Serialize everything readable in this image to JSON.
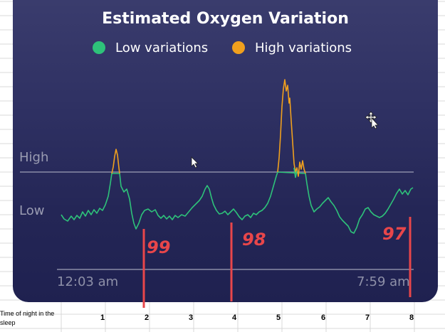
{
  "chart_data": {
    "type": "line",
    "title": "Estimated Oxygen Variation",
    "legend": [
      {
        "label": "Low variations",
        "color": "#2ec27a"
      },
      {
        "label": "High variations",
        "color": "#f0a01e"
      }
    ],
    "y_levels": [
      "High",
      "Low"
    ],
    "time_start": "12:03 am",
    "time_end": "7:59 am",
    "x_axis_label": "Time of night in the sleep",
    "x_ticks": [
      "1",
      "2",
      "3",
      "4",
      "5",
      "6",
      "7",
      "8"
    ],
    "annotations": [
      {
        "text": "99",
        "x": 2
      },
      {
        "text": "98",
        "x": 4
      },
      {
        "text": "97",
        "x": 8
      }
    ],
    "marker_hours": [
      2,
      4,
      8
    ],
    "colors": {
      "low": "#2ec27a",
      "high": "#f0a01e",
      "marker": "#e8464a",
      "high_line": "#8b8da6"
    }
  }
}
